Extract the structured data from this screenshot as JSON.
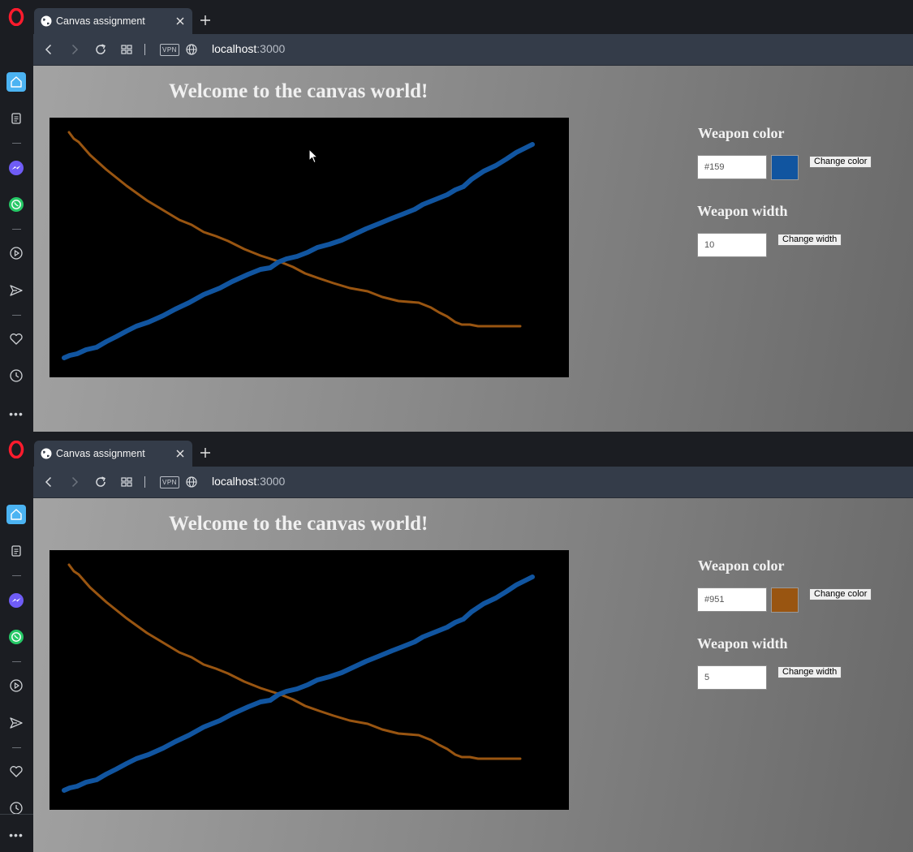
{
  "windows": [
    {
      "tab": {
        "title": "Canvas assignment"
      },
      "address": {
        "host": "localhost",
        "port": ":3000"
      },
      "toolbar": {
        "vpn_label": "VPN"
      },
      "page": {
        "title": "Welcome to the canvas world!",
        "weapon_color": {
          "heading": "Weapon color",
          "input_value": "#159",
          "swatch_color": "#1155a0",
          "button_label": "Change color"
        },
        "weapon_width": {
          "heading": "Weapon width",
          "input_value": "10",
          "button_label": "Change width"
        }
      },
      "sidebar": {
        "more_label": "•••"
      }
    },
    {
      "tab": {
        "title": "Canvas assignment"
      },
      "address": {
        "host": "localhost",
        "port": ":3000"
      },
      "toolbar": {
        "vpn_label": "VPN"
      },
      "page": {
        "title": "Welcome to the canvas world!",
        "weapon_color": {
          "heading": "Weapon color",
          "input_value": "#951",
          "swatch_color": "#995511",
          "button_label": "Change color"
        },
        "weapon_width": {
          "heading": "Weapon width",
          "input_value": "5",
          "button_label": "Change width"
        }
      },
      "sidebar": {
        "more_label": "•••"
      }
    }
  ],
  "canvas_strokes": [
    {
      "name": "blue-stroke",
      "color": "#1155a0"
    },
    {
      "name": "brown-stroke",
      "color": "#995511"
    }
  ]
}
